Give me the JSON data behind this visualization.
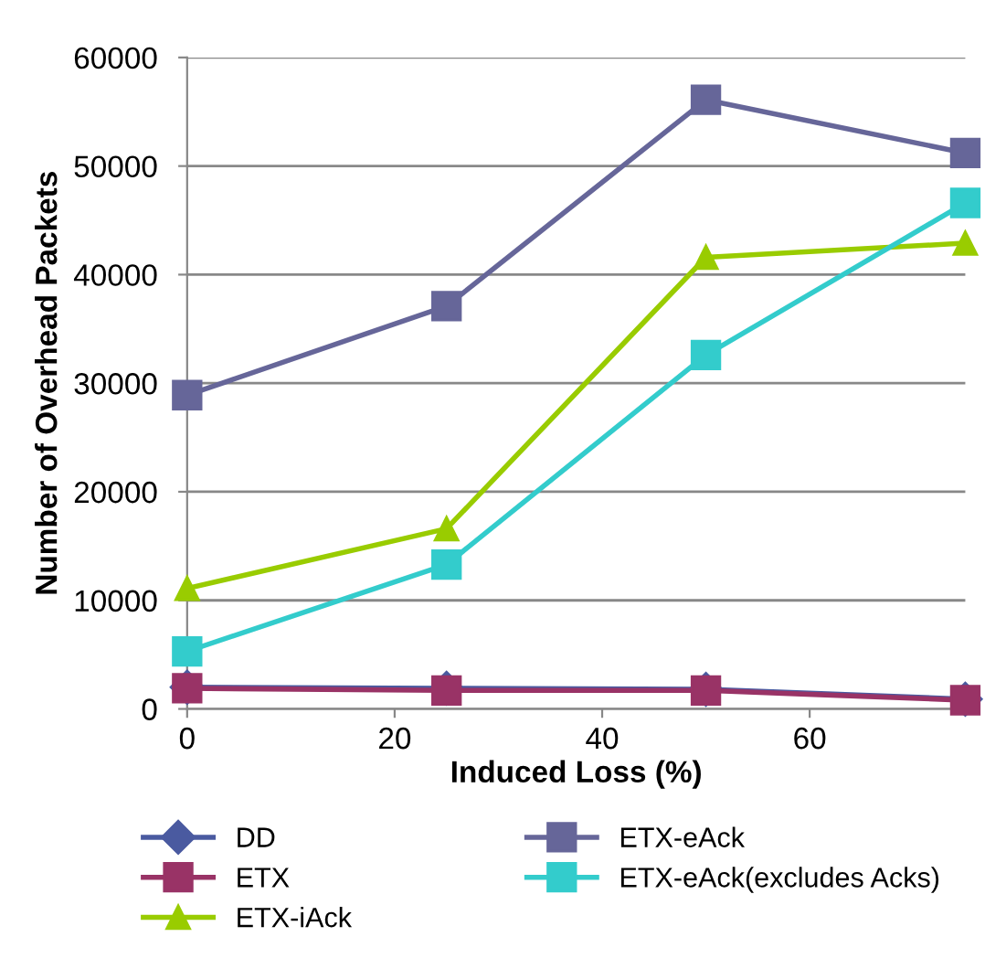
{
  "chart_data": {
    "type": "line",
    "xlabel": "Induced Loss (%)",
    "ylabel": "Number of Overhead Packets",
    "x": [
      0,
      25,
      50,
      75
    ],
    "xlim": [
      0,
      75
    ],
    "xticks": [
      0,
      20,
      40,
      60
    ],
    "ylim": [
      0,
      60000
    ],
    "yticks": [
      0,
      10000,
      20000,
      30000,
      40000,
      50000,
      60000
    ],
    "grid": "y",
    "legend": "bottom",
    "line_style": "solid",
    "series": [
      {
        "name": "DD",
        "color": "#4a5aa0",
        "marker": "diamond",
        "values": [
          2000,
          1900,
          1800,
          900
        ]
      },
      {
        "name": "ETX",
        "color": "#993366",
        "marker": "square",
        "values": [
          1900,
          1700,
          1700,
          800
        ]
      },
      {
        "name": "ETX-iAck",
        "color": "#99cc00",
        "marker": "triangle",
        "values": [
          11100,
          16600,
          41600,
          42900
        ]
      },
      {
        "name": "ETX-eAck",
        "color": "#666699",
        "marker": "square",
        "values": [
          28900,
          37100,
          56100,
          51200
        ]
      },
      {
        "name": "ETX-eAck(excludes Acks)",
        "color": "#33cccc",
        "marker": "square",
        "values": [
          5300,
          13300,
          32600,
          46600
        ]
      }
    ]
  }
}
